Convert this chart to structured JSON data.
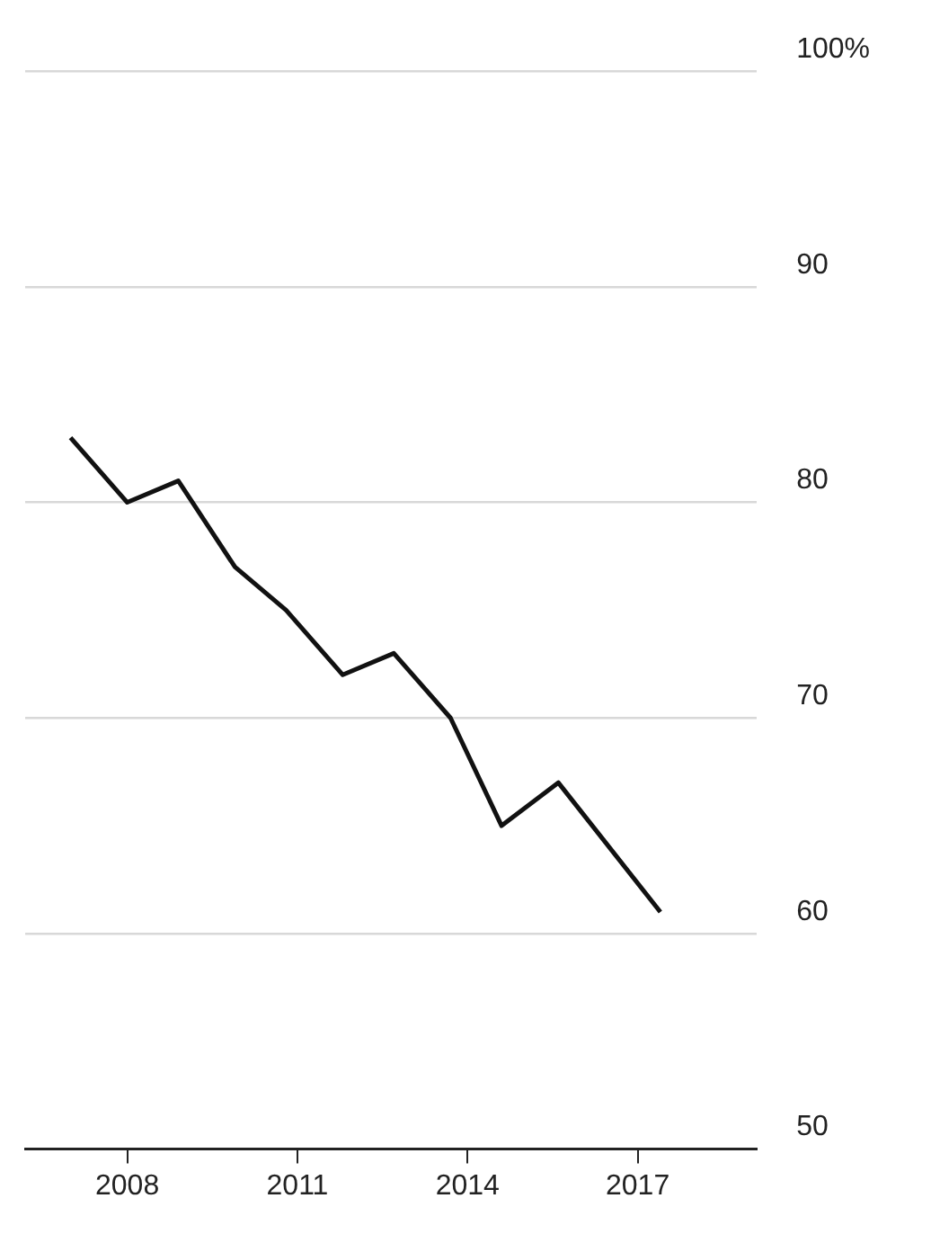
{
  "chart_data": {
    "type": "line",
    "x": [
      2007,
      2008,
      2008.9,
      2009.9,
      2010.8,
      2011.8,
      2012.7,
      2013.7,
      2014.6,
      2015.6,
      2017.4
    ],
    "series": [
      {
        "color": "#111111",
        "values": [
          83,
          80,
          81,
          77,
          75,
          72,
          73,
          70,
          65,
          67,
          61
        ]
      }
    ],
    "xlim": [
      2006.2,
      2019.1
    ],
    "xticks": [
      2008,
      2011,
      2014,
      2017
    ],
    "ylim": [
      50,
      100
    ],
    "yticks": [
      50,
      60,
      70,
      80,
      {
        "value": 90,
        "label": "90"
      },
      {
        "value": 100,
        "label": "100%"
      }
    ],
    "grid": "y",
    "legend": false,
    "marker": "none",
    "line_style": "solid"
  }
}
